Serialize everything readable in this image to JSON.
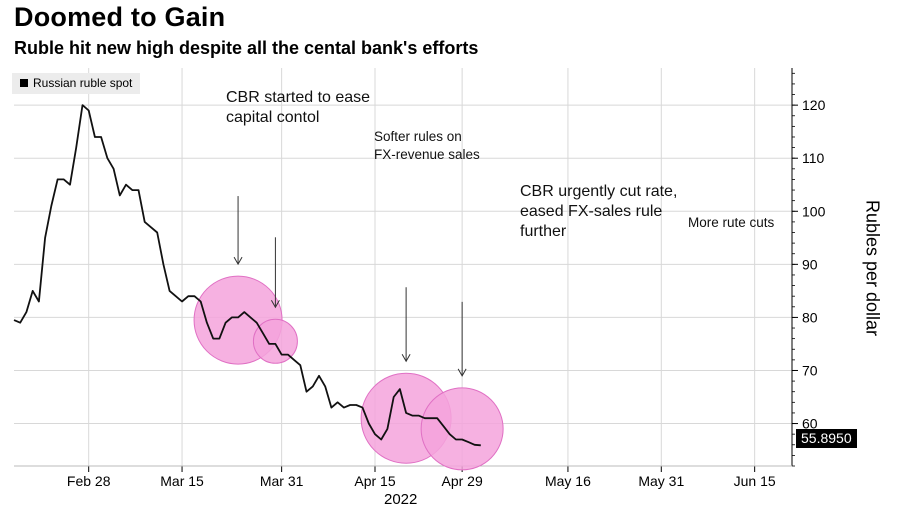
{
  "header": {
    "title": "Doomed to Gain",
    "subtitle": "Ruble hit new high despite all the cental bank's efforts"
  },
  "legend": {
    "label": "Russian ruble spot"
  },
  "axis": {
    "ylabel": "Rubles per dollar",
    "year": "2022"
  },
  "last_value_label": "55.8950",
  "annotations": {
    "a1": [
      "CBR started to ease",
      "capital contol"
    ],
    "a2": [
      "Softer rules on",
      "FX-revenue sales"
    ],
    "a3": [
      "CBR urgently cut rate,",
      "eased FX-sales rule",
      "further"
    ],
    "a4": [
      "More rute cuts"
    ]
  },
  "colors": {
    "line": "#111111",
    "highlight_fill": "#f5a3dc",
    "highlight_stroke": "#e070c4",
    "grid": "#d8d8d8"
  },
  "chart_data": {
    "type": "line",
    "title": "Doomed to Gain",
    "subtitle": "Ruble hit new high despite all the cental bank's efforts",
    "xlabel": "",
    "ylabel": "Rubles per dollar",
    "ylim": [
      52,
      127
    ],
    "xlim": [
      "2022-02-16",
      "2022-06-21"
    ],
    "y_ticks": [
      60,
      70,
      80,
      90,
      100,
      110,
      120
    ],
    "x_ticks": [
      {
        "date": "2022-02-28",
        "label": "Feb 28"
      },
      {
        "date": "2022-03-15",
        "label": "Mar 15"
      },
      {
        "date": "2022-03-31",
        "label": "Mar 31"
      },
      {
        "date": "2022-04-15",
        "label": "Apr 15"
      },
      {
        "date": "2022-04-29",
        "label": "Apr 29"
      },
      {
        "date": "2022-05-16",
        "label": "May 16"
      },
      {
        "date": "2022-05-31",
        "label": "May 31"
      },
      {
        "date": "2022-06-15",
        "label": "Jun 15"
      }
    ],
    "grid": true,
    "legend_position": "top-left",
    "series": [
      {
        "name": "Russian ruble spot",
        "points": [
          [
            "2022-02-16",
            79.5
          ],
          [
            "2022-02-17",
            79
          ],
          [
            "2022-02-18",
            81
          ],
          [
            "2022-02-19",
            85
          ],
          [
            "2022-02-20",
            83
          ],
          [
            "2022-02-21",
            95
          ],
          [
            "2022-02-22",
            101
          ],
          [
            "2022-02-23",
            106
          ],
          [
            "2022-02-24",
            106
          ],
          [
            "2022-02-25",
            105
          ],
          [
            "2022-02-26",
            112
          ],
          [
            "2022-02-27",
            120
          ],
          [
            "2022-02-28",
            119
          ],
          [
            "2022-03-01",
            114
          ],
          [
            "2022-03-02",
            114
          ],
          [
            "2022-03-03",
            110
          ],
          [
            "2022-03-04",
            108
          ],
          [
            "2022-03-05",
            103
          ],
          [
            "2022-03-06",
            105
          ],
          [
            "2022-03-07",
            104
          ],
          [
            "2022-03-08",
            104
          ],
          [
            "2022-03-09",
            98
          ],
          [
            "2022-03-10",
            97
          ],
          [
            "2022-03-11",
            96
          ],
          [
            "2022-03-12",
            90
          ],
          [
            "2022-03-13",
            85
          ],
          [
            "2022-03-14",
            84
          ],
          [
            "2022-03-15",
            83
          ],
          [
            "2022-03-16",
            84
          ],
          [
            "2022-03-17",
            84
          ],
          [
            "2022-03-18",
            83
          ],
          [
            "2022-03-19",
            79
          ],
          [
            "2022-03-20",
            76
          ],
          [
            "2022-03-21",
            76
          ],
          [
            "2022-03-22",
            79
          ],
          [
            "2022-03-23",
            80
          ],
          [
            "2022-03-24",
            80
          ],
          [
            "2022-03-25",
            81
          ],
          [
            "2022-03-26",
            80
          ],
          [
            "2022-03-27",
            79
          ],
          [
            "2022-03-28",
            77
          ],
          [
            "2022-03-29",
            75
          ],
          [
            "2022-03-30",
            75
          ],
          [
            "2022-03-31",
            73
          ],
          [
            "2022-04-01",
            73
          ],
          [
            "2022-04-02",
            72
          ],
          [
            "2022-04-03",
            71
          ],
          [
            "2022-04-04",
            66
          ],
          [
            "2022-04-05",
            67
          ],
          [
            "2022-04-06",
            69
          ],
          [
            "2022-04-07",
            67
          ],
          [
            "2022-04-08",
            63
          ],
          [
            "2022-04-09",
            64
          ],
          [
            "2022-04-10",
            63
          ],
          [
            "2022-04-11",
            63.5
          ],
          [
            "2022-04-12",
            63.5
          ],
          [
            "2022-04-13",
            63
          ],
          [
            "2022-04-14",
            60
          ],
          [
            "2022-04-15",
            58
          ],
          [
            "2022-04-16",
            57
          ],
          [
            "2022-04-17",
            59
          ],
          [
            "2022-04-18",
            65
          ],
          [
            "2022-04-19",
            66.5
          ],
          [
            "2022-04-20",
            62
          ],
          [
            "2022-04-21",
            61.5
          ],
          [
            "2022-04-22",
            61.5
          ],
          [
            "2022-04-23",
            61
          ],
          [
            "2022-04-24",
            61
          ],
          [
            "2022-04-25",
            61
          ],
          [
            "2022-04-26",
            59.5
          ],
          [
            "2022-04-27",
            58
          ],
          [
            "2022-04-28",
            57
          ],
          [
            "2022-04-29",
            57
          ],
          [
            "2022-04-30",
            56.5
          ],
          [
            "2022-05-01",
            56
          ],
          [
            "2022-05-02",
            55.9
          ]
        ]
      }
    ],
    "highlights": [
      {
        "date": "2022-03-24",
        "value": 79.5
      },
      {
        "date": "2022-03-30",
        "value": 75.5
      },
      {
        "date": "2022-04-20",
        "value": 61
      },
      {
        "date": "2022-04-29",
        "value": 59
      }
    ]
  }
}
